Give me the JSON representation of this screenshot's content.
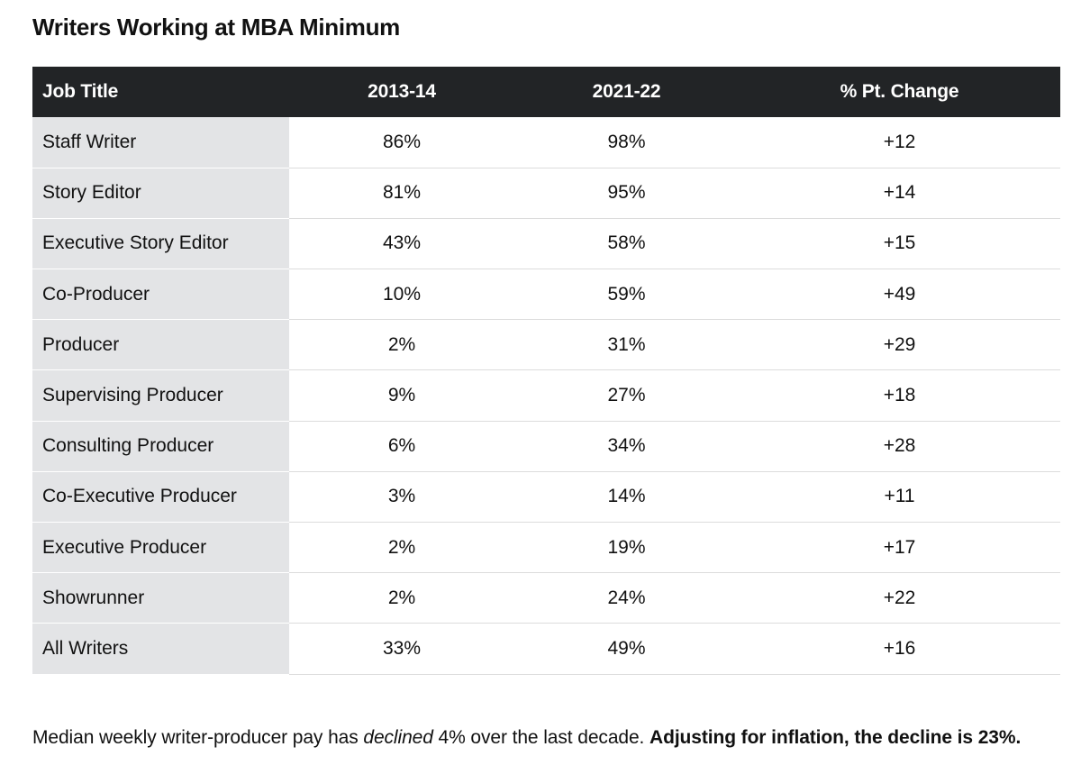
{
  "title": "Writers Working at MBA Minimum",
  "table": {
    "headers": [
      "Job Title",
      "2013-14",
      "2021-22",
      "% Pt. Change"
    ],
    "rows": [
      [
        "Staff Writer",
        "86%",
        "98%",
        "+12"
      ],
      [
        "Story Editor",
        "81%",
        "95%",
        "+14"
      ],
      [
        "Executive Story Editor",
        "43%",
        "58%",
        "+15"
      ],
      [
        "Co-Producer",
        "10%",
        "59%",
        "+49"
      ],
      [
        "Producer",
        "2%",
        "31%",
        "+29"
      ],
      [
        "Supervising Producer",
        "9%",
        "27%",
        "+18"
      ],
      [
        "Consulting Producer",
        "6%",
        "34%",
        "+28"
      ],
      [
        "Co-Executive Producer",
        "3%",
        "14%",
        "+11"
      ],
      [
        "Executive Producer",
        "2%",
        "19%",
        "+17"
      ],
      [
        "Showrunner",
        "2%",
        "24%",
        "+22"
      ],
      [
        "All Writers",
        "33%",
        "49%",
        "+16"
      ]
    ]
  },
  "footnote": {
    "part1": "Median weekly writer-producer pay has ",
    "emphasis": "declined",
    "part2": " 4% over the last decade. ",
    "bold": "Adjusting for inflation, the decline is 23%."
  },
  "colors": {
    "header_bg": "#222426",
    "first_column_bg": "#e3e4e6",
    "text": "#111111"
  }
}
